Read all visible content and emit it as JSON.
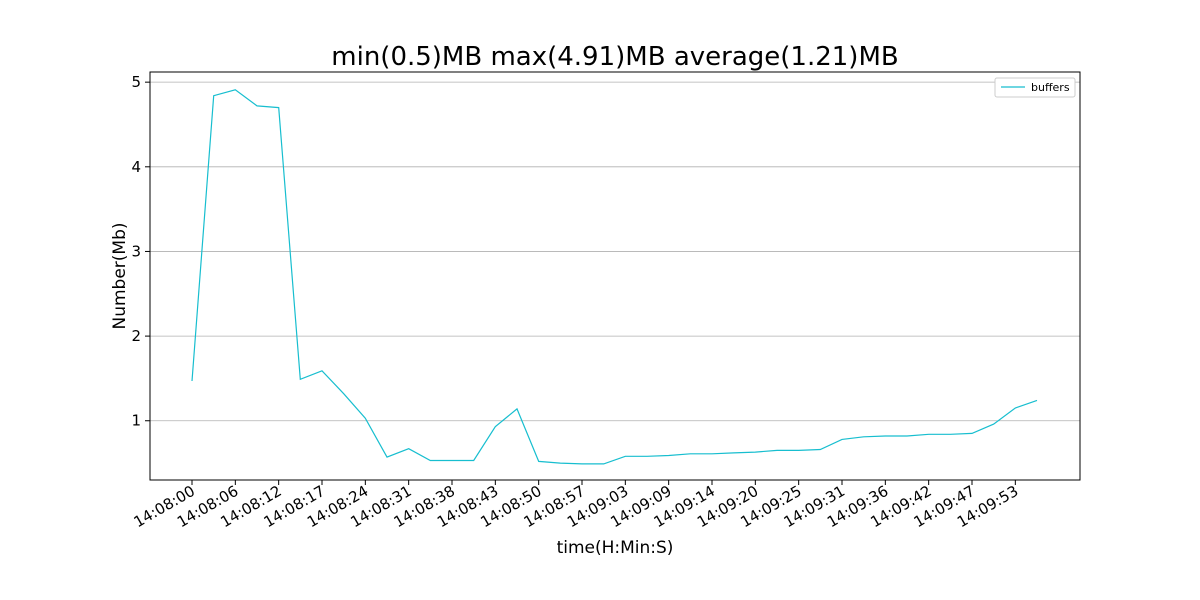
{
  "chart_data": {
    "type": "line",
    "title": "min(0.5)MB max(4.91)MB average(1.21)MB",
    "xlabel": "time(H:Min:S)",
    "ylabel": "Number(Mb)",
    "ylim": [
      0.3,
      5.12
    ],
    "yticks": [
      1,
      2,
      3,
      4,
      5
    ],
    "grid": "horizontal",
    "legend_position": "top-right",
    "line_color": "#17becf",
    "x_tick_labels": [
      "14:08:00",
      "14:08:06",
      "14:08:12",
      "14:08:17",
      "14:08:24",
      "14:08:31",
      "14:08:38",
      "14:08:43",
      "14:08:50",
      "14:08:57",
      "14:09:03",
      "14:09:09",
      "14:09:14",
      "14:09:20",
      "14:09:25",
      "14:09:31",
      "14:09:36",
      "14:09:42",
      "14:09:47",
      "14:09:53"
    ],
    "series": [
      {
        "name": "buffers",
        "values": [
          1.47,
          4.84,
          4.91,
          4.72,
          4.7,
          1.49,
          1.59,
          1.32,
          1.03,
          0.57,
          0.67,
          0.53,
          0.53,
          0.53,
          0.93,
          1.14,
          0.52,
          0.5,
          0.49,
          0.49,
          0.58,
          0.58,
          0.59,
          0.61,
          0.61,
          0.62,
          0.63,
          0.65,
          0.65,
          0.66,
          0.78,
          0.81,
          0.82,
          0.82,
          0.84,
          0.84,
          0.85,
          0.96,
          1.15,
          1.24
        ]
      }
    ]
  }
}
